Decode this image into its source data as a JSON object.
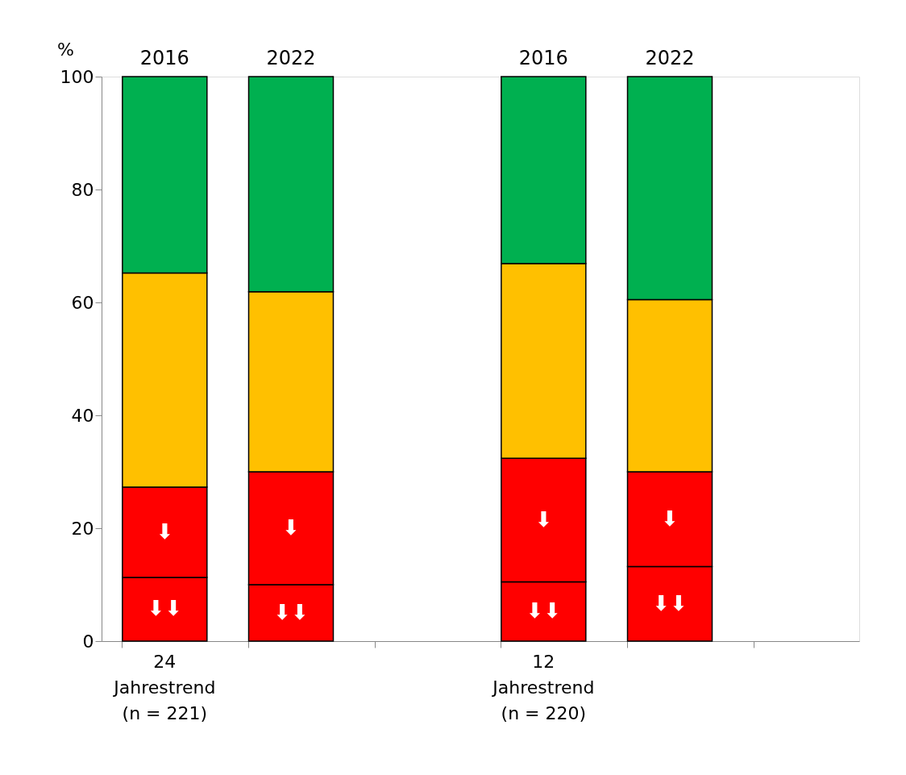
{
  "chart_data": {
    "type": "bar",
    "stacked": true,
    "ylabel": "%",
    "categories": [
      "2016",
      "2022",
      null,
      "2016",
      "2022",
      null
    ],
    "series": [
      {
        "name": "⬇⬇",
        "color": "#ff0000",
        "values": [
          11.3,
          10.0,
          null,
          10.5,
          13.2,
          null
        ]
      },
      {
        "name": "⬇",
        "color": "#ff0000",
        "values": [
          16.0,
          20.0,
          null,
          21.9,
          16.8,
          null
        ]
      },
      {
        "color": "#ffc000",
        "values": [
          37.9,
          31.9,
          null,
          34.5,
          30.5,
          null
        ]
      },
      {
        "color": "#00b050",
        "values": [
          34.8,
          38.1,
          null,
          33.1,
          39.5,
          null
        ]
      }
    ],
    "ylim": [
      0,
      100
    ],
    "yticks": [
      0,
      20,
      40,
      60,
      80,
      100
    ],
    "grid": false,
    "annotations": [
      "24\nJahrestrend\n(n = 221)",
      "12\nJahrestrend\n(n = 220)"
    ]
  }
}
